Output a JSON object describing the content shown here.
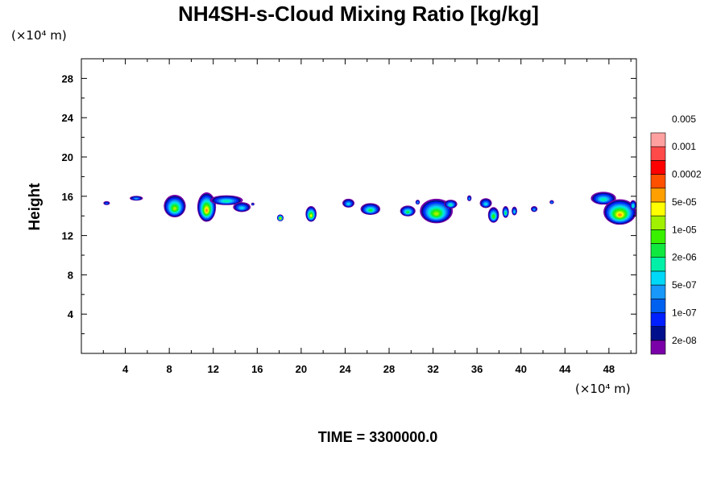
{
  "chart_data": {
    "type": "heatmap",
    "title": "NH4SH-s-Cloud Mixing Ratio [kg/kg]",
    "x_unit": "(×10⁴ m)",
    "y_unit": "(×10⁴ m)",
    "ylabel": "Height",
    "xlim": [
      0,
      50.5
    ],
    "ylim": [
      0,
      30
    ],
    "x_ticks": [
      4,
      8,
      12,
      16,
      20,
      24,
      28,
      32,
      36,
      40,
      44,
      48
    ],
    "y_ticks": [
      4,
      8,
      12,
      16,
      20,
      24,
      28
    ],
    "time_label": "TIME = 3300000.0",
    "colorbar": {
      "colors": [
        "#7a00a8",
        "#00108c",
        "#0020ff",
        "#0060f0",
        "#1898f8",
        "#00d8f8",
        "#00f0a8",
        "#10e840",
        "#38f000",
        "#a0f000",
        "#ffff00",
        "#ffa000",
        "#ff5000",
        "#ff0000",
        "#ff4a4a",
        "#ffa0a0"
      ],
      "labels": [
        "2e-08",
        "1e-07",
        "5e-07",
        "2e-06",
        "1e-05",
        "5e-05",
        "0.0002",
        "0.001",
        "0.005"
      ]
    },
    "clusters": [
      {
        "x": 2.3,
        "y": 15.3,
        "w": 0.6,
        "h": 0.4,
        "level": 3
      },
      {
        "x": 5.0,
        "y": 15.8,
        "w": 1.2,
        "h": 0.5,
        "level": 4
      },
      {
        "x": 8.5,
        "y": 15.0,
        "w": 2.0,
        "h": 2.3,
        "level": 9
      },
      {
        "x": 11.4,
        "y": 14.9,
        "w": 1.7,
        "h": 3.0,
        "level": 11
      },
      {
        "x": 13.2,
        "y": 15.6,
        "w": 3.0,
        "h": 1.0,
        "level": 6
      },
      {
        "x": 14.6,
        "y": 14.9,
        "w": 1.6,
        "h": 1.0,
        "level": 5
      },
      {
        "x": 15.6,
        "y": 15.2,
        "w": 0.3,
        "h": 0.3,
        "level": 3
      },
      {
        "x": 18.1,
        "y": 13.8,
        "w": 0.6,
        "h": 0.7,
        "level": 11
      },
      {
        "x": 20.9,
        "y": 14.2,
        "w": 1.0,
        "h": 1.6,
        "level": 10
      },
      {
        "x": 24.3,
        "y": 15.3,
        "w": 1.1,
        "h": 0.9,
        "level": 5
      },
      {
        "x": 26.3,
        "y": 14.7,
        "w": 1.8,
        "h": 1.2,
        "level": 7
      },
      {
        "x": 29.7,
        "y": 14.5,
        "w": 1.4,
        "h": 1.1,
        "level": 7
      },
      {
        "x": 30.6,
        "y": 15.4,
        "w": 0.4,
        "h": 0.5,
        "level": 4
      },
      {
        "x": 32.3,
        "y": 14.5,
        "w": 3.0,
        "h": 2.5,
        "level": 9
      },
      {
        "x": 33.6,
        "y": 15.2,
        "w": 1.2,
        "h": 0.9,
        "level": 6
      },
      {
        "x": 35.3,
        "y": 15.8,
        "w": 0.4,
        "h": 0.6,
        "level": 4
      },
      {
        "x": 36.8,
        "y": 15.3,
        "w": 1.1,
        "h": 1.0,
        "level": 5
      },
      {
        "x": 37.5,
        "y": 14.1,
        "w": 1.0,
        "h": 1.6,
        "level": 8
      },
      {
        "x": 38.6,
        "y": 14.4,
        "w": 0.6,
        "h": 1.2,
        "level": 7
      },
      {
        "x": 39.4,
        "y": 14.5,
        "w": 0.5,
        "h": 0.9,
        "level": 5
      },
      {
        "x": 41.2,
        "y": 14.7,
        "w": 0.6,
        "h": 0.6,
        "level": 4
      },
      {
        "x": 42.8,
        "y": 15.4,
        "w": 0.4,
        "h": 0.4,
        "level": 4
      },
      {
        "x": 47.5,
        "y": 15.8,
        "w": 2.3,
        "h": 1.3,
        "level": 6
      },
      {
        "x": 49.0,
        "y": 14.4,
        "w": 3.0,
        "h": 2.6,
        "level": 11
      },
      {
        "x": 50.2,
        "y": 15.1,
        "w": 0.6,
        "h": 1.0,
        "level": 6
      }
    ]
  }
}
